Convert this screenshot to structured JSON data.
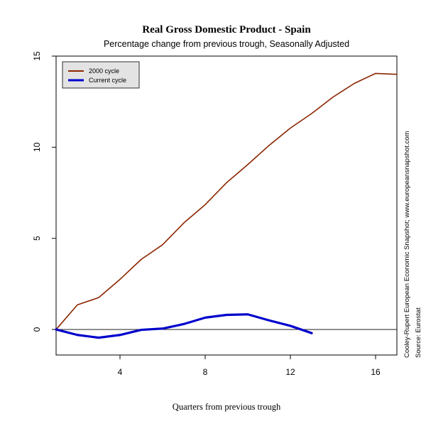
{
  "chart_data": {
    "type": "line",
    "title": "Real Gross Domestic Product - Spain",
    "subtitle": "Percentage change from previous trough, Seasonally Adjusted",
    "xlabel": "Quarters from previous trough",
    "ylabel": "",
    "xlim": [
      1,
      17
    ],
    "ylim": [
      -1.4,
      15
    ],
    "x_ticks": [
      4,
      8,
      12,
      16
    ],
    "y_ticks": [
      0,
      5,
      10,
      15
    ],
    "zero_line": true,
    "grid": false,
    "legend": "top-left",
    "series": [
      {
        "name": "2000 cycle",
        "color": "#8b2500",
        "x": [
          1,
          2,
          3,
          4,
          5,
          6,
          7,
          8,
          9,
          10,
          11,
          12,
          13,
          14,
          15,
          16,
          17
        ],
        "values": [
          0.0,
          1.35,
          1.75,
          2.75,
          3.85,
          4.65,
          5.85,
          6.85,
          8.05,
          9.05,
          10.1,
          11.05,
          11.85,
          12.75,
          13.5,
          14.05,
          14.0
        ]
      },
      {
        "name": "Current cycle",
        "color": "#0000cd",
        "x": [
          1,
          2,
          3,
          4,
          5,
          6,
          7,
          8,
          9,
          10,
          11,
          12,
          13
        ],
        "values": [
          0.0,
          -0.3,
          -0.45,
          -0.3,
          -0.02,
          0.05,
          0.3,
          0.65,
          0.8,
          0.83,
          0.5,
          0.2,
          -0.2
        ]
      }
    ],
    "side_notes": [
      "Cooley-Rupert European Economic Snapshot; www.europeansnapshot.com",
      "Source: Eurostat"
    ]
  }
}
